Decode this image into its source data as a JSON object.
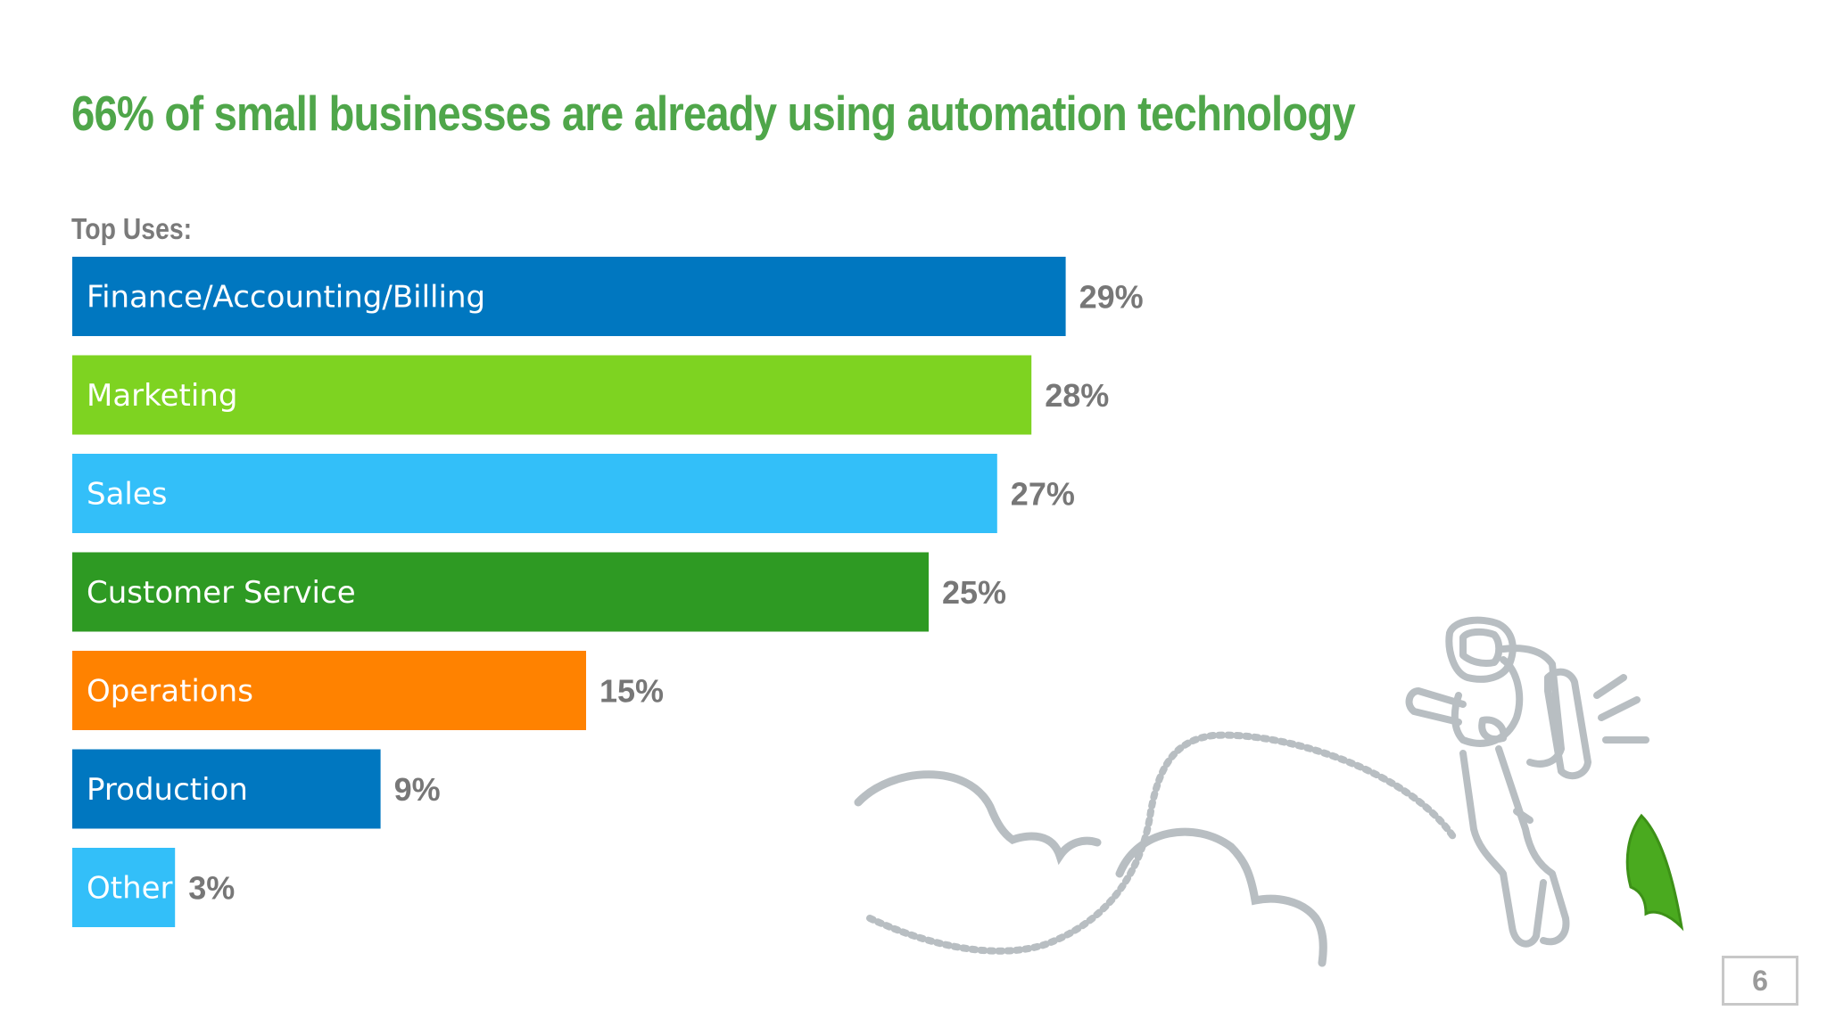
{
  "slide": {
    "title": "66% of small businesses are already using automation technology",
    "subtitle": "Top Uses:",
    "page_number": "6"
  },
  "chart_data": {
    "type": "bar",
    "orientation": "horizontal",
    "title": "66% of small businesses are already using automation technology",
    "subtitle": "Top Uses:",
    "categories": [
      "Finance/Accounting/Billing",
      "Marketing",
      "Sales",
      "Customer Service",
      "Operations",
      "Production",
      "Other"
    ],
    "values": [
      29,
      28,
      27,
      25,
      15,
      9,
      3
    ],
    "value_labels": [
      "29%",
      "28%",
      "27%",
      "25%",
      "15%",
      "9%",
      "3%"
    ],
    "colors": [
      "#0077c0",
      "#7ed321",
      "#33bff9",
      "#2e9a23",
      "#ff8200",
      "#0077c0",
      "#33bff9"
    ],
    "unit": "%",
    "grid": false,
    "axes_visible": false,
    "legend": "none"
  },
  "illustration": {
    "icons": [
      "astronaut-jetpack-icon",
      "leaf-icon",
      "cloud-icon",
      "dotted-flight-path-icon"
    ],
    "colors": {
      "outline": "#b8bec2",
      "leaf": "#4aaa1f"
    }
  }
}
